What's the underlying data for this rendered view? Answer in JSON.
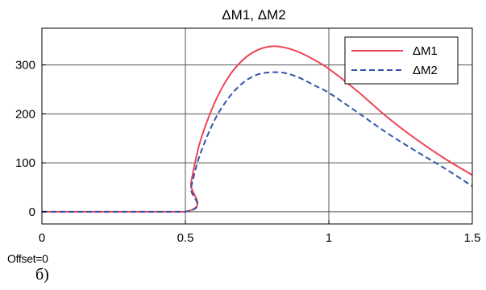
{
  "chart_data": {
    "type": "line",
    "title": "ΔM1, ΔM2",
    "xlabel": "",
    "ylabel": "",
    "xlim": [
      0,
      1.5
    ],
    "ylim": [
      -25,
      375
    ],
    "xticks": [
      0,
      0.5,
      1,
      1.5
    ],
    "xtick_labels": [
      "0",
      "0.5",
      "1",
      "1.5"
    ],
    "yticks": [
      0,
      100,
      200,
      300
    ],
    "ytick_labels": [
      "0",
      "100",
      "200",
      "300"
    ],
    "grid": true,
    "legend_position": "top-right",
    "series": [
      {
        "name": "ΔM1",
        "color": "#ee4455",
        "style": "solid",
        "x": [
          0,
          0.5,
          0.52,
          0.55,
          0.6,
          0.65,
          0.7,
          0.75,
          0.8,
          0.85,
          0.9,
          0.95,
          1.0,
          1.1,
          1.2,
          1.3,
          1.4,
          1.5
        ],
        "y": [
          0,
          0,
          60,
          140,
          220,
          275,
          310,
          330,
          338,
          335,
          325,
          310,
          292,
          246,
          195,
          150,
          110,
          75
        ]
      },
      {
        "name": "ΔM2",
        "color": "#3355aa",
        "style": "dashed",
        "x": [
          0,
          0.5,
          0.52,
          0.55,
          0.6,
          0.65,
          0.7,
          0.75,
          0.8,
          0.85,
          0.9,
          0.95,
          1.0,
          1.1,
          1.2,
          1.3,
          1.4,
          1.5
        ],
        "y": [
          0,
          0,
          50,
          115,
          185,
          232,
          263,
          280,
          285,
          283,
          273,
          258,
          243,
          203,
          162,
          125,
          90,
          52
        ]
      }
    ]
  },
  "footer": {
    "offset_label": "Offset=0",
    "caption": "б)"
  }
}
